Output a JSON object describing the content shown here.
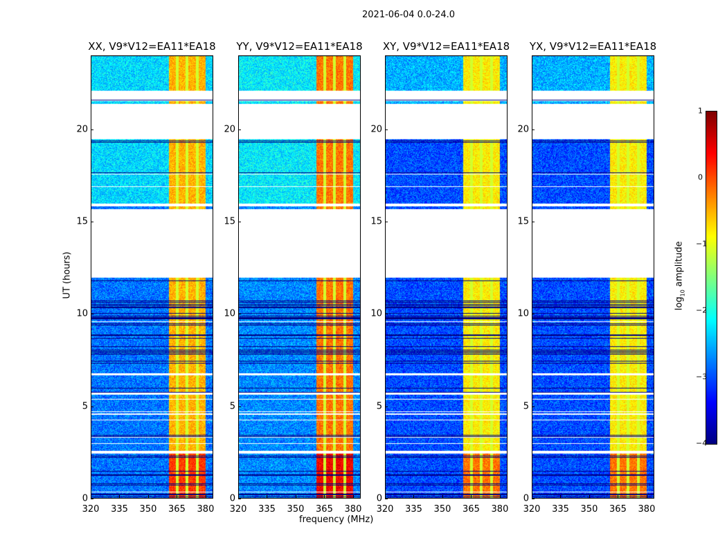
{
  "suptitle": "2021-06-04 0.0-24.0",
  "chart_data": {
    "type": "heatmap",
    "xlabel": "frequency (MHz)",
    "ylabel": "UT (hours)",
    "xlim": [
      320,
      384
    ],
    "ylim": [
      0,
      24
    ],
    "xticks": [
      "320",
      "335",
      "350",
      "365",
      "380"
    ],
    "yticks": [
      "0",
      "5",
      "10",
      "15",
      "20"
    ],
    "colorbar": {
      "label_main": "log",
      "label_sub": "10",
      "label_rest": " amplitude",
      "range": [
        -4,
        1
      ],
      "ticks": [
        "1",
        "0",
        "−1",
        "−2",
        "−3",
        "−4"
      ],
      "colormap": "jet"
    },
    "data_gaps_hours": [
      [
        12.0,
        15.7
      ],
      [
        15.85,
        16.0
      ],
      [
        19.5,
        21.4
      ],
      [
        21.6,
        22.1
      ],
      [
        4.55,
        4.62
      ],
      [
        5.65,
        5.75
      ],
      [
        6.7,
        6.8
      ],
      [
        2.45,
        2.6
      ]
    ],
    "rfi_band_mhz": [
      360.5,
      380
    ],
    "band_dividers_mhz": [
      365,
      370,
      375.5
    ],
    "panels": [
      {
        "title": "XX, V9*V12=EA11*EA18",
        "background_log_amp": -2.8,
        "band_log_amp": -0.5
      },
      {
        "title": "YY, V9*V12=EA11*EA18",
        "background_log_amp": -2.7,
        "band_log_amp": -0.2
      },
      {
        "title": "XY, V9*V12=EA11*EA18",
        "background_log_amp": -3.0,
        "band_log_amp": -0.8
      },
      {
        "title": "YX, V9*V12=EA11*EA18",
        "background_log_amp": -3.0,
        "band_log_amp": -0.8
      }
    ]
  }
}
